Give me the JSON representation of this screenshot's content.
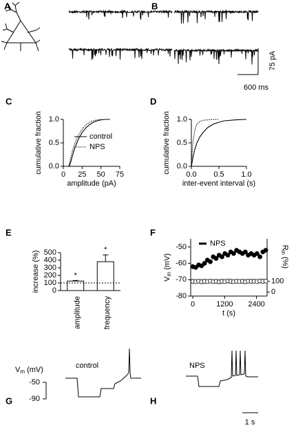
{
  "panel_labels": [
    "A",
    "B",
    "C",
    "D",
    "E",
    "F",
    "G",
    "H"
  ],
  "scale_bars": {
    "current": "75 pA",
    "time_ab": "600 ms",
    "time_gh": "1 s"
  },
  "panel_g": {
    "title": "control",
    "ylabel": [
      "V",
      "m",
      " (mV)"
    ],
    "ticks": [
      "-50",
      "-90"
    ]
  },
  "panel_h": {
    "title": "NPS"
  },
  "chart_data": [
    {
      "type": "line",
      "xlabel": "amplitude (pA)",
      "ylabel": "cumulative fraction",
      "xlim": [
        0,
        75
      ],
      "xticks": [
        0,
        25,
        50,
        75
      ],
      "ylim": [
        0,
        1
      ],
      "yticks": [
        {
          "value": 0,
          "label": "0.0"
        },
        {
          "value": 0.5,
          "label": "0.5"
        },
        {
          "value": 1,
          "label": "1.0"
        }
      ],
      "legend": "right",
      "series": [
        {
          "name": "control",
          "color": "#000000",
          "dash": "solid",
          "x": [
            8,
            10,
            12,
            15,
            18,
            20,
            25,
            30,
            35,
            40,
            45,
            50,
            55,
            62
          ],
          "values": [
            0,
            0.1,
            0.22,
            0.38,
            0.5,
            0.58,
            0.72,
            0.82,
            0.89,
            0.94,
            0.97,
            0.99,
            1,
            1
          ]
        },
        {
          "name": "NPS",
          "color": "#000000",
          "dash": "dotted",
          "x": [
            7,
            9,
            11,
            14,
            17,
            20,
            25,
            30,
            35,
            40,
            45,
            50
          ],
          "values": [
            0,
            0.12,
            0.26,
            0.43,
            0.56,
            0.66,
            0.79,
            0.88,
            0.94,
            0.97,
            0.99,
            1
          ]
        }
      ]
    },
    {
      "type": "line",
      "xlabel": "inter-event interval (s)",
      "ylabel": "cumulative fraction",
      "xlim": [
        0,
        1
      ],
      "xticks": [
        {
          "value": 0,
          "label": "0.0"
        },
        {
          "value": 0.5,
          "label": "0.5"
        },
        {
          "value": 1,
          "label": "1.0"
        }
      ],
      "ylim": [
        0,
        1
      ],
      "yticks": [
        {
          "value": 0,
          "label": "0.0"
        },
        {
          "value": 0.5,
          "label": "0.5"
        },
        {
          "value": 1,
          "label": "1.0"
        }
      ],
      "series": [
        {
          "color": "#000000",
          "dash": "solid",
          "x": [
            0,
            0.03,
            0.06,
            0.1,
            0.15,
            0.2,
            0.25,
            0.3,
            0.4,
            0.5,
            0.6,
            0.8,
            1.0
          ],
          "values": [
            0,
            0.2,
            0.35,
            0.5,
            0.62,
            0.7,
            0.77,
            0.83,
            0.9,
            0.94,
            0.97,
            0.99,
            1
          ]
        },
        {
          "color": "#000000",
          "dash": "dotted",
          "x": [
            0,
            0.02,
            0.04,
            0.06,
            0.08,
            0.1,
            0.15,
            0.2,
            0.3,
            0.4,
            0.5
          ],
          "values": [
            0,
            0.4,
            0.6,
            0.75,
            0.84,
            0.9,
            0.95,
            0.98,
            0.99,
            1,
            1
          ]
        }
      ]
    },
    {
      "type": "bar",
      "ylabel": "increase (%)",
      "categories": [
        "amplitude",
        "frequency"
      ],
      "values": [
        125,
        380
      ],
      "errors": [
        8,
        90
      ],
      "annotations": [
        "*",
        "*"
      ],
      "color": "#ffffff",
      "reference_line": 100,
      "ylim": [
        0,
        500
      ],
      "yticks": [
        0,
        100,
        200,
        300,
        400,
        500
      ]
    },
    {
      "type": "scatter",
      "xlabel": "t (s)",
      "ylabel": [
        "V",
        "m",
        " (mV)"
      ],
      "y2label": [
        "R",
        "in",
        " (%)"
      ],
      "xlim": [
        -80,
        2800
      ],
      "xticks": [
        0,
        1200,
        2400
      ],
      "ylim": [
        -80,
        -45
      ],
      "yticks": [
        -80,
        -70,
        -60,
        -50
      ],
      "y2lim": [
        -38,
        500
      ],
      "y2ticks": [
        0,
        100
      ],
      "legend": "top-left",
      "legend_entry": "NPS",
      "x": [
        0,
        110,
        220,
        330,
        440,
        550,
        660,
        770,
        880,
        990,
        1100,
        1210,
        1320,
        1430,
        1540,
        1650,
        1760,
        1870,
        1980,
        2090,
        2200,
        2310,
        2420,
        2530,
        2640,
        2750
      ],
      "series": [
        {
          "color": "#000000",
          "marker_fill": true,
          "values": [
            -62,
            -62.5,
            -61,
            -61.5,
            -60,
            -58,
            -59,
            -56,
            -57,
            -55,
            -56,
            -54,
            -55,
            -53,
            -54,
            -52,
            -53,
            -54,
            -53,
            -55,
            -54,
            -55,
            -54,
            -56,
            -53,
            -52
          ]
        },
        {
          "color": "#000000",
          "marker_fill": false,
          "axis": "y2",
          "values": [
            100,
            98,
            102,
            97,
            101,
            99,
            103,
            98,
            100,
            96,
            101,
            99,
            104,
            100,
            98,
            102,
            99,
            101,
            97,
            103,
            100,
            102,
            99,
            104,
            101,
            103
          ]
        }
      ]
    }
  ]
}
